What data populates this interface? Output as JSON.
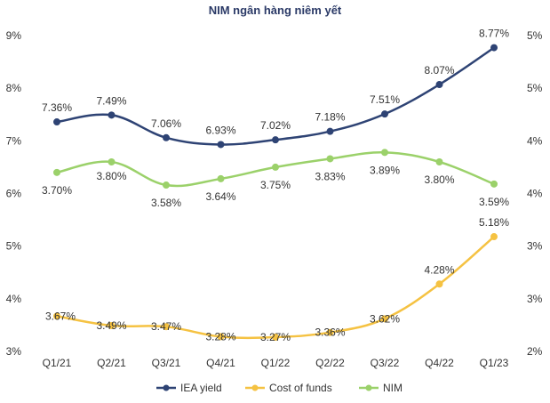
{
  "chart_data": {
    "type": "line",
    "title": "NIM ngân hàng niêm yết",
    "categories": [
      "Q1/21",
      "Q2/21",
      "Q3/21",
      "Q4/21",
      "Q1/22",
      "Q2/22",
      "Q3/22",
      "Q4/22",
      "Q1/23"
    ],
    "y_left": {
      "ticks": [
        "3%",
        "4%",
        "5%",
        "6%",
        "7%",
        "8%",
        "9%"
      ],
      "range": [
        3,
        9
      ]
    },
    "y_right": {
      "ticks": [
        "2%",
        "3%",
        "3%",
        "4%",
        "4%",
        "5%",
        "5%"
      ],
      "range": [
        2,
        5
      ]
    },
    "series": [
      {
        "name": "IEA yield",
        "color": "#2e4374",
        "axis": "left",
        "values": [
          7.36,
          7.49,
          7.06,
          6.93,
          7.02,
          7.18,
          7.51,
          8.07,
          8.77
        ],
        "labels": [
          "7.36%",
          "7.49%",
          "7.06%",
          "6.93%",
          "7.02%",
          "7.18%",
          "7.51%",
          "8.07%",
          "8.77%"
        ]
      },
      {
        "name": "Cost of funds",
        "color": "#f5c242",
        "axis": "left",
        "values": [
          3.67,
          3.49,
          3.47,
          3.28,
          3.27,
          3.36,
          3.62,
          4.28,
          5.18
        ],
        "labels": [
          "3.67%",
          "3.49%",
          "3.47%",
          "3.28%",
          "3.27%",
          "3.36%",
          "3.62%",
          "4.28%",
          "5.18%"
        ]
      },
      {
        "name": "NIM",
        "color": "#9bd16a",
        "axis": "right",
        "values": [
          3.7,
          3.8,
          3.58,
          3.64,
          3.75,
          3.83,
          3.89,
          3.8,
          3.59
        ],
        "labels": [
          "3.70%",
          "3.80%",
          "3.58%",
          "3.64%",
          "3.75%",
          "3.83%",
          "3.89%",
          "3.80%",
          "3.59%"
        ]
      }
    ],
    "grid": false,
    "legend": "bottom-center"
  }
}
